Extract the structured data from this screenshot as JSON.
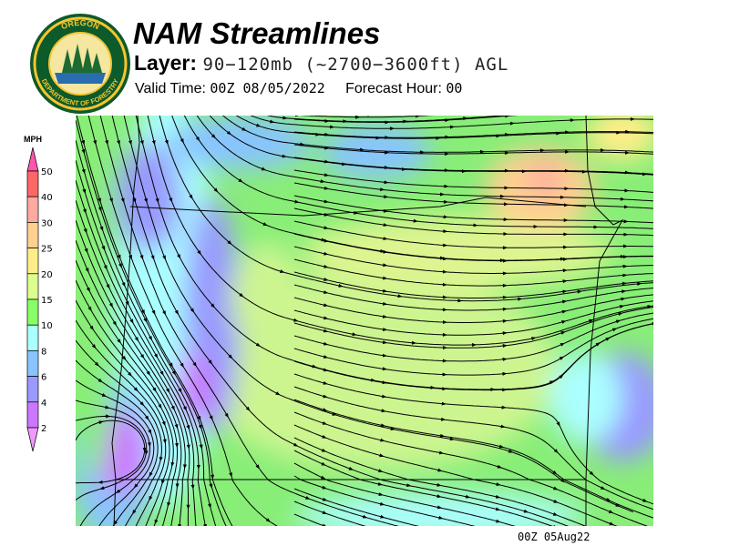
{
  "logo": {
    "text_top": "OREGON",
    "text_bottom": "DEPARTMENT OF FORESTRY"
  },
  "header": {
    "title": "NAM Streamlines",
    "layer_label": "Layer:",
    "layer_value": "90−120mb (~2700−3600ft) AGL",
    "valid_label": "Valid Time:",
    "valid_value": "00Z 08/05/2022",
    "forecast_label": "Forecast Hour:",
    "forecast_value": "00"
  },
  "legend": {
    "unit": "MPH",
    "ticks": [
      "50",
      "40",
      "30",
      "25",
      "20",
      "15",
      "10",
      "8",
      "6",
      "4",
      "2"
    ],
    "colors": [
      "#ff6666",
      "#ffaaa0",
      "#ffd090",
      "#ffee88",
      "#ddff90",
      "#88ff66",
      "#aaffff",
      "#88c4ff",
      "#9999ff",
      "#cc77ff"
    ],
    "over_color": "#ff55aa",
    "under_color": "#ee99ff"
  },
  "footer": {
    "stamp": "00Z 05Aug22"
  }
}
